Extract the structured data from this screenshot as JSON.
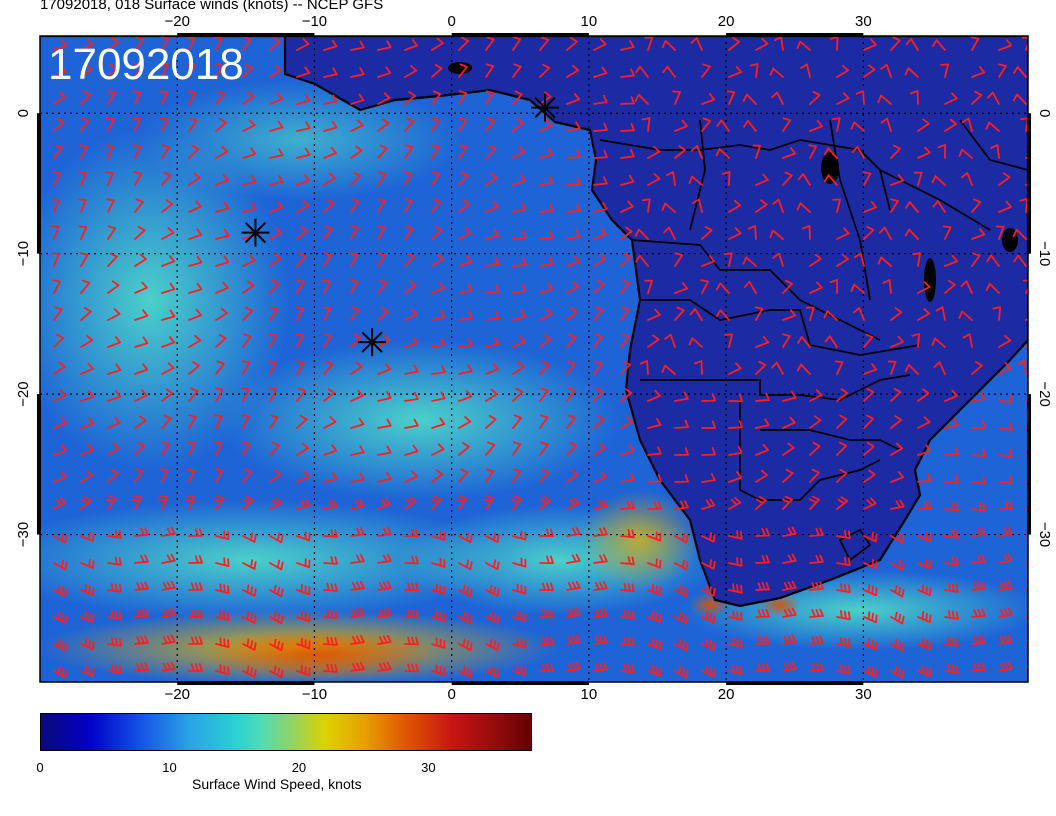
{
  "header": {
    "title": "17092018, 018 Surface winds (knots) -- NCEP GFS"
  },
  "map": {
    "stamp": "17092018",
    "extent": {
      "lon": [
        -30,
        42
      ],
      "lat": [
        -40.5,
        5.5
      ]
    },
    "lon_ticks": [
      -20,
      -10,
      0,
      10,
      20,
      30
    ],
    "lat_ticks": [
      0,
      -10,
      -20,
      -30
    ],
    "lon_tick_labels": [
      "−20",
      "−10",
      "0",
      "10",
      "20",
      "30"
    ],
    "lat_tick_labels": [
      "0",
      "−10",
      "−20",
      "−30"
    ],
    "markers": [
      {
        "name": "asterisk",
        "lon": 6.8,
        "lat": 0.4
      },
      {
        "name": "asterisk",
        "lon": -14.3,
        "lat": -8.5
      },
      {
        "name": "asterisk",
        "lon": -5.8,
        "lat": -16.3
      }
    ],
    "colors": {
      "ocean": "#1e5fd2",
      "land": "#1c2aa8",
      "coast": "#000000",
      "barbs": "#ff1e1e",
      "grid": "#000000"
    }
  },
  "colorbar": {
    "ticks": [
      0,
      10,
      20,
      30
    ],
    "tick_labels": [
      "0",
      "10",
      "20",
      "30"
    ],
    "max": 38,
    "label": "Surface Wind Speed, knots"
  }
}
